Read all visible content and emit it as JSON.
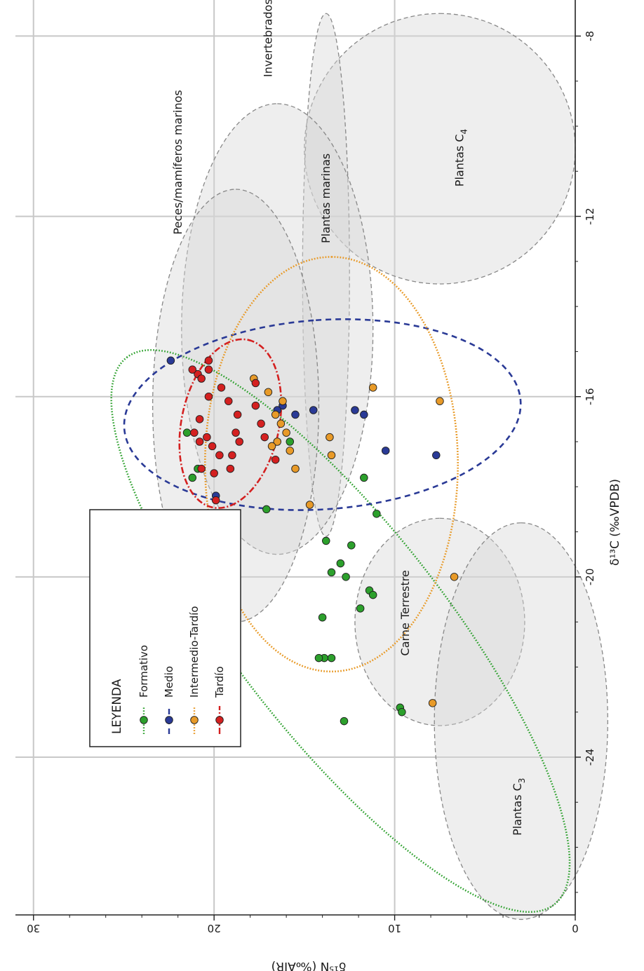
{
  "chart_data": {
    "type": "scatter",
    "orientation": "rotated 90° counter-clockwise",
    "xlabel": "δ¹³C (‰VPDB)",
    "ylabel": "δ¹⁵N (‰AIR)",
    "xlim": [
      -27.5,
      -7.2
    ],
    "ylim": [
      0,
      31
    ],
    "x_ticks": [
      -24,
      -20,
      -16,
      -12,
      -8
    ],
    "y_ticks": [
      0,
      10,
      20,
      30
    ],
    "grid": true,
    "legend": {
      "title": "LEYENDA",
      "placement": "bottom-left",
      "entries": [
        {
          "label": "Formativo",
          "color": "#2ca02c"
        },
        {
          "label": "Medio",
          "color": "#2a3a96"
        },
        {
          "label": "Intermedio-Tardío",
          "color": "#e89a28"
        },
        {
          "label": "Tardío",
          "color": "#d42020"
        }
      ]
    },
    "regions": [
      {
        "name": "Plantas C4",
        "name_main": "Plantas C",
        "name_sub": "4",
        "cx": -10.5,
        "cy": 7.5,
        "rx": 3.0,
        "ry": 7.5,
        "label_x": -10.7,
        "label_y": 6.2
      },
      {
        "name": "Plantas marinas",
        "name_main": "Plantas marinas",
        "name_sub": "",
        "cx": -13.3,
        "cy": 13.8,
        "rx": 5.8,
        "ry": 1.3,
        "label_x": -11.6,
        "label_y": 13.6
      },
      {
        "name": "Invertebrados marinos",
        "name_main": "Invertebrados marinos",
        "name_sub": "",
        "cx": -14.5,
        "cy": 16.5,
        "rx": 5.0,
        "ry": 5.3,
        "label_x": -7.5,
        "label_y": 16.8
      },
      {
        "name": "Peces/mamíferos marinos",
        "name_main": "Peces/mamíferos marinos",
        "name_sub": "",
        "cx": -16.2,
        "cy": 18.8,
        "rx": 4.8,
        "ry": 4.6,
        "label_x": -10.8,
        "label_y": 21.8
      },
      {
        "name": "Carne Terrestre",
        "name_main": "Carne Terrestre",
        "name_sub": "",
        "cx": -21.0,
        "cy": 7.5,
        "rx": 2.3,
        "ry": 4.7,
        "label_x": -20.8,
        "label_y": 9.2
      },
      {
        "name": "Plantas C3",
        "name_main": "Plantas C",
        "name_sub": "3",
        "cx": -23.2,
        "cy": 3.0,
        "rx": 4.4,
        "ry": 4.8,
        "label_x": -25.1,
        "label_y": 3.0
      }
    ],
    "series": [
      {
        "name": "Formativo",
        "color": "#2ca02c",
        "dash": "1.6 2.4",
        "ellipse": {
          "cx": -21.2,
          "cy": 13.0,
          "rx": 7.7,
          "ry": 5.8,
          "angle_deg": 38.0
        },
        "points": [
          [
            -16.8,
            21.5
          ],
          [
            -17.6,
            20.9
          ],
          [
            -17.8,
            21.2
          ],
          [
            -18.5,
            17.1
          ],
          [
            -17.0,
            15.8
          ],
          [
            -17.8,
            11.7
          ],
          [
            -18.6,
            11.0
          ],
          [
            -19.2,
            13.8
          ],
          [
            -19.3,
            12.4
          ],
          [
            -19.7,
            13.0
          ],
          [
            -19.9,
            13.5
          ],
          [
            -20.0,
            12.7
          ],
          [
            -20.3,
            11.4
          ],
          [
            -20.4,
            11.2
          ],
          [
            -20.7,
            11.9
          ],
          [
            -20.9,
            14.0
          ],
          [
            -21.8,
            13.5
          ],
          [
            -21.8,
            13.9
          ],
          [
            -21.8,
            14.2
          ],
          [
            -23.2,
            12.8
          ],
          [
            -22.9,
            9.7
          ],
          [
            -23.0,
            9.6
          ]
        ]
      },
      {
        "name": "Medio",
        "color": "#2a3a96",
        "dash": "8 6",
        "ellipse": {
          "cx": -16.4,
          "cy": 14.0,
          "rx": 2.1,
          "ry": 11.0,
          "angle_deg": 4.0
        },
        "points": [
          [
            -15.2,
            22.4
          ],
          [
            -16.2,
            16.2
          ],
          [
            -16.3,
            16.5
          ],
          [
            -16.4,
            15.5
          ],
          [
            -16.3,
            14.5
          ],
          [
            -16.3,
            12.2
          ],
          [
            -16.4,
            11.7
          ],
          [
            -17.2,
            10.5
          ],
          [
            -17.3,
            7.7
          ],
          [
            -18.2,
            19.9
          ]
        ]
      },
      {
        "name": "Intermedio-Tardío",
        "color": "#e89a28",
        "dash": "1.8 2.2",
        "ellipse": {
          "cx": -17.5,
          "cy": 13.5,
          "rx": 4.6,
          "ry": 7.0,
          "angle_deg": 0.0
        },
        "points": [
          [
            -15.6,
            17.8
          ],
          [
            -15.9,
            17.0
          ],
          [
            -16.1,
            16.2
          ],
          [
            -16.4,
            16.6
          ],
          [
            -16.6,
            16.3
          ],
          [
            -16.8,
            16.0
          ],
          [
            -17.0,
            16.5
          ],
          [
            -17.1,
            16.8
          ],
          [
            -17.2,
            15.8
          ],
          [
            -17.6,
            15.5
          ],
          [
            -16.9,
            13.6
          ],
          [
            -17.3,
            13.5
          ],
          [
            -15.8,
            11.2
          ],
          [
            -18.4,
            14.7
          ],
          [
            -16.1,
            7.5
          ],
          [
            -20.0,
            6.7
          ],
          [
            -22.8,
            7.9
          ]
        ]
      },
      {
        "name": "Tardío",
        "color": "#d42020",
        "dash": "9 3 2 3",
        "ellipse": {
          "cx": -16.6,
          "cy": 19.1,
          "rx": 1.9,
          "ry": 2.7,
          "angle_deg": -12.0
        },
        "points": [
          [
            -15.2,
            20.3
          ],
          [
            -15.4,
            20.3
          ],
          [
            -15.5,
            20.9
          ],
          [
            -15.6,
            20.7
          ],
          [
            -15.4,
            21.2
          ],
          [
            -15.7,
            17.7
          ],
          [
            -15.8,
            19.6
          ],
          [
            -16.0,
            20.3
          ],
          [
            -16.1,
            19.2
          ],
          [
            -16.5,
            20.8
          ],
          [
            -16.8,
            21.1
          ],
          [
            -16.9,
            20.4
          ],
          [
            -17.0,
            20.8
          ],
          [
            -17.1,
            20.1
          ],
          [
            -16.4,
            18.7
          ],
          [
            -16.8,
            18.8
          ],
          [
            -17.0,
            18.6
          ],
          [
            -17.3,
            19.7
          ],
          [
            -17.6,
            19.1
          ],
          [
            -17.7,
            20.0
          ],
          [
            -18.3,
            19.9
          ],
          [
            -16.2,
            17.7
          ],
          [
            -16.6,
            17.4
          ],
          [
            -16.9,
            17.2
          ],
          [
            -17.4,
            16.6
          ],
          [
            -17.6,
            20.7
          ],
          [
            -17.3,
            19.0
          ]
        ]
      }
    ]
  }
}
